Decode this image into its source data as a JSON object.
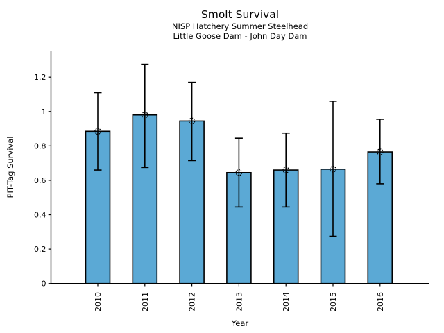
{
  "chart_data": {
    "type": "bar",
    "title": "Smolt Survival",
    "subtitle_line1": "NISP Hatchery Summer Steelhead",
    "subtitle_line2": "Little Goose Dam - John Day Dam",
    "xlabel": "Year",
    "ylabel": "PIT-Tag Survival",
    "categories": [
      "2010",
      "2011",
      "2012",
      "2013",
      "2014",
      "2015",
      "2016"
    ],
    "values": [
      0.885,
      0.98,
      0.945,
      0.645,
      0.66,
      0.665,
      0.765
    ],
    "error_low": [
      0.66,
      0.675,
      0.715,
      0.445,
      0.445,
      0.275,
      0.58
    ],
    "error_high": [
      1.11,
      1.275,
      1.17,
      0.845,
      0.875,
      1.06,
      0.955
    ],
    "ylim": [
      0,
      1.35
    ],
    "ytick_values": [
      0,
      0.2,
      0.4,
      0.6,
      0.8,
      1.0,
      1.2
    ],
    "ytick_labels": [
      "0",
      "0.2",
      "0.4",
      "0.6",
      "0.8",
      "1",
      "1.2"
    ],
    "x_tick_label_rotation": 90,
    "grid": false,
    "legend": "none",
    "marker": "open-circle",
    "bar_color": "#5BA9D5",
    "bar_edge_color": "#000000",
    "error_color": "#000000",
    "axis_color": "#000000"
  }
}
